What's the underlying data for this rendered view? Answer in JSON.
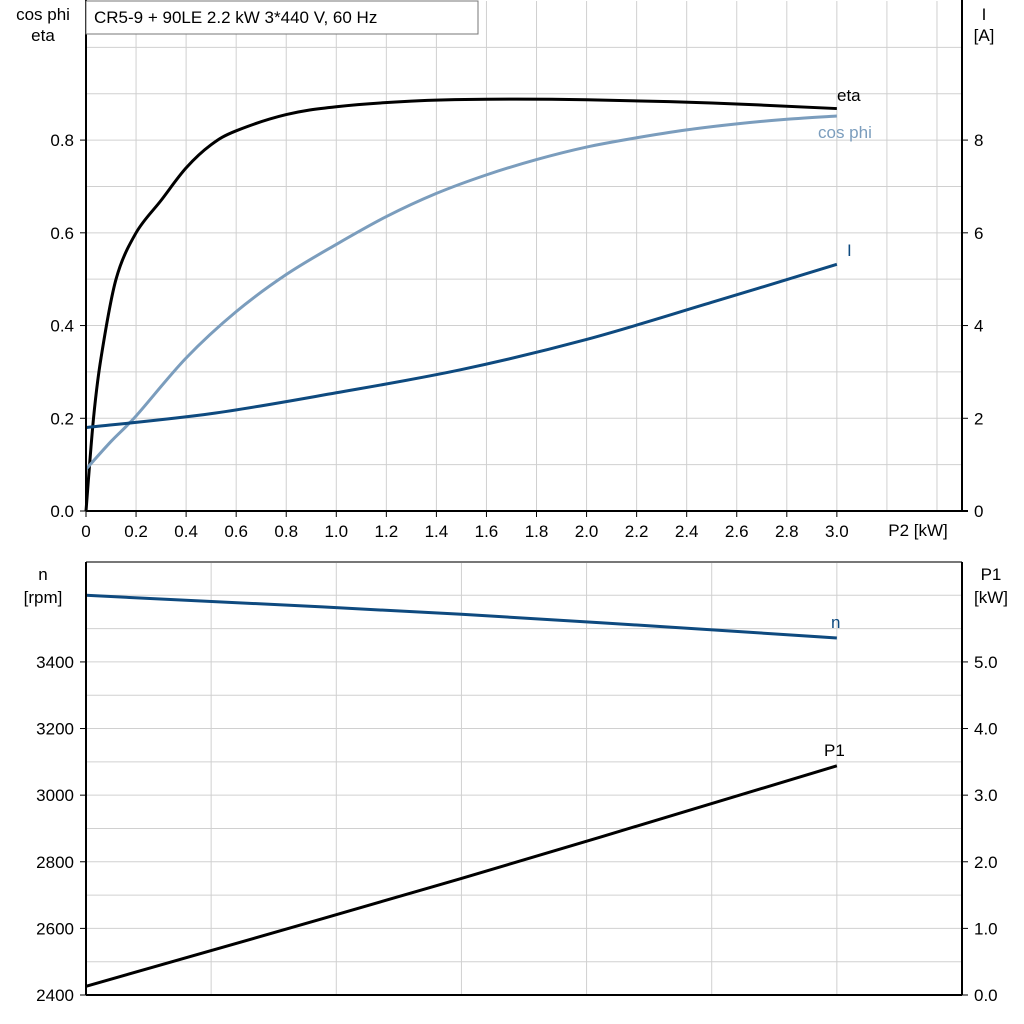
{
  "title": "CR5-9 + 90LE   2.2 kW   3*440 V, 60 Hz",
  "colors": {
    "eta": "#000000",
    "cos_phi": "#7b9dbd",
    "I": "#0e4a7f",
    "n": "#0e4a7f",
    "P1": "#000000",
    "grid": "#d0d0d0"
  },
  "chart_data": [
    {
      "type": "line",
      "xlabel": "P2 [kW]",
      "ylabel_left": [
        "cos phi",
        "eta"
      ],
      "ylabel_right": [
        "I",
        "[A]"
      ],
      "xlim": [
        0,
        3.5
      ],
      "ylim_left": [
        0,
        1.1
      ],
      "ylim_right": [
        0,
        11
      ],
      "x_ticks": [
        "0",
        "0.2",
        "0.4",
        "0.6",
        "0.8",
        "1.0",
        "1.2",
        "1.4",
        "1.6",
        "1.8",
        "2.0",
        "2.2",
        "2.4",
        "2.6",
        "2.8",
        "3.0"
      ],
      "y_ticks_left": [
        "0.0",
        "0.2",
        "0.4",
        "0.6",
        "0.8"
      ],
      "y_ticks_right": [
        "0",
        "2",
        "4",
        "6",
        "8"
      ],
      "grid": true,
      "series": [
        {
          "name": "eta",
          "axis": "left",
          "x": [
            0,
            0.03,
            0.06,
            0.12,
            0.2,
            0.3,
            0.4,
            0.5,
            0.6,
            0.8,
            1.0,
            1.3,
            1.6,
            2.0,
            2.5,
            3.0
          ],
          "y": [
            0,
            0.2,
            0.33,
            0.5,
            0.6,
            0.67,
            0.74,
            0.79,
            0.82,
            0.855,
            0.872,
            0.884,
            0.888,
            0.887,
            0.88,
            0.868
          ]
        },
        {
          "name": "cos phi",
          "axis": "left",
          "x": [
            0,
            0.1,
            0.2,
            0.4,
            0.6,
            0.8,
            1.0,
            1.2,
            1.4,
            1.6,
            1.8,
            2.0,
            2.2,
            2.4,
            2.6,
            2.8,
            3.0
          ],
          "y": [
            0.09,
            0.15,
            0.205,
            0.33,
            0.43,
            0.51,
            0.575,
            0.635,
            0.685,
            0.725,
            0.758,
            0.785,
            0.805,
            0.822,
            0.835,
            0.845,
            0.852
          ]
        },
        {
          "name": "I",
          "axis": "right",
          "x": [
            0,
            0.5,
            1.0,
            1.5,
            2.0,
            2.5,
            3.0
          ],
          "y": [
            1.8,
            2.1,
            2.55,
            3.05,
            3.7,
            4.5,
            5.32
          ]
        }
      ]
    },
    {
      "type": "line",
      "ylabel_left": [
        "n",
        "[rpm]"
      ],
      "ylabel_right": [
        "P1",
        "[kW]"
      ],
      "xlim": [
        0,
        3.5
      ],
      "ylim_left": [
        2400,
        3700
      ],
      "ylim_right": [
        0,
        6.5
      ],
      "y_ticks_left": [
        "2400",
        "2600",
        "2800",
        "3000",
        "3200",
        "3400"
      ],
      "y_ticks_right": [
        "0.0",
        "1.0",
        "2.0",
        "3.0",
        "4.0",
        "5.0"
      ],
      "grid": true,
      "series": [
        {
          "name": "n",
          "axis": "left",
          "x": [
            0,
            1.5,
            3.0
          ],
          "y": [
            3600,
            3543,
            3472
          ]
        },
        {
          "name": "P1",
          "axis": "right",
          "x": [
            0,
            1.5,
            3.0
          ],
          "y": [
            0.13,
            1.75,
            3.44
          ]
        }
      ]
    }
  ]
}
